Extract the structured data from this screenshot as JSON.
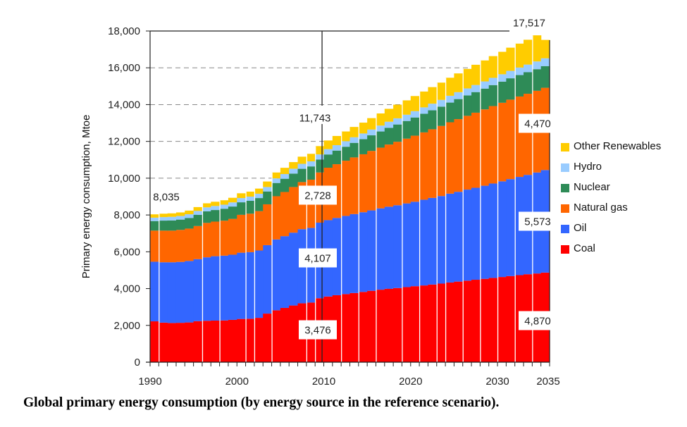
{
  "chart_data": {
    "type": "bar",
    "stacked": true,
    "title": "",
    "caption": "Global primary energy consumption (by energy source in the reference scenario).",
    "xlabel": "",
    "ylabel": "Primary energy consumption, Mtoe",
    "ylim": [
      0,
      18000
    ],
    "yticks": [
      0,
      2000,
      4000,
      6000,
      8000,
      10000,
      12000,
      14000,
      16000,
      18000
    ],
    "ytick_labels": [
      "0",
      "2,000",
      "4,000",
      "6,000",
      "8,000",
      "10,000",
      "12,000",
      "14,000",
      "16,000",
      "18,000"
    ],
    "xtick_labels": [
      {
        "year": 1990,
        "label": "1990"
      },
      {
        "year": 2000,
        "label": "2000"
      },
      {
        "year": 2010,
        "label": "2010"
      },
      {
        "year": 2020,
        "label": "2020"
      },
      {
        "year": 2030,
        "label": "2030"
      },
      {
        "year": 2035,
        "label": "2035"
      }
    ],
    "grid": "horizontal-dashed",
    "legend_position": "right",
    "categories": [
      1990,
      1991,
      1992,
      1993,
      1994,
      1995,
      1996,
      1997,
      1998,
      1999,
      2000,
      2001,
      2002,
      2003,
      2004,
      2005,
      2006,
      2007,
      2008,
      2009,
      2010,
      2011,
      2012,
      2013,
      2014,
      2015,
      2016,
      2017,
      2018,
      2019,
      2020,
      2021,
      2022,
      2023,
      2024,
      2025,
      2026,
      2027,
      2028,
      2029,
      2030,
      2031,
      2032,
      2033,
      2034,
      2035
    ],
    "series": [
      {
        "name": "Coal",
        "color": "#ff0000",
        "values": [
          2220,
          2150,
          2130,
          2140,
          2160,
          2230,
          2250,
          2260,
          2270,
          2300,
          2350,
          2360,
          2410,
          2640,
          2820,
          2950,
          3080,
          3200,
          3240,
          3476,
          3570,
          3640,
          3700,
          3760,
          3820,
          3880,
          3940,
          3990,
          4030,
          4080,
          4130,
          4170,
          4220,
          4270,
          4330,
          4380,
          4430,
          4480,
          4530,
          4580,
          4630,
          4680,
          4730,
          4780,
          4820,
          4870
        ]
      },
      {
        "name": "Oil",
        "color": "#3366ff",
        "values": [
          3240,
          3280,
          3300,
          3310,
          3340,
          3370,
          3450,
          3500,
          3520,
          3540,
          3600,
          3620,
          3660,
          3720,
          3850,
          3900,
          3960,
          4030,
          4060,
          4107,
          4150,
          4200,
          4250,
          4290,
          4330,
          4370,
          4420,
          4460,
          4500,
          4550,
          4590,
          4660,
          4710,
          4760,
          4830,
          4880,
          4950,
          5000,
          5060,
          5130,
          5200,
          5270,
          5340,
          5400,
          5490,
          5573
        ]
      },
      {
        "name": "Natural gas",
        "color": "#ff6600",
        "values": [
          1690,
          1720,
          1720,
          1740,
          1760,
          1800,
          1870,
          1880,
          1900,
          1950,
          2060,
          2090,
          2140,
          2220,
          2350,
          2400,
          2480,
          2560,
          2620,
          2728,
          2850,
          2920,
          3000,
          3080,
          3150,
          3230,
          3300,
          3380,
          3450,
          3520,
          3590,
          3660,
          3730,
          3810,
          3880,
          3950,
          4010,
          4080,
          4150,
          4210,
          4270,
          4320,
          4370,
          4410,
          4440,
          4470
        ]
      },
      {
        "name": "Nuclear",
        "color": "#2e8b57",
        "values": [
          520,
          545,
          555,
          560,
          580,
          610,
          630,
          630,
          650,
          670,
          680,
          700,
          710,
          700,
          720,
          720,
          730,
          720,
          720,
          700,
          720,
          740,
          760,
          790,
          820,
          850,
          880,
          910,
          940,
          960,
          990,
          1010,
          1030,
          1050,
          1070,
          1090,
          1110,
          1120,
          1130,
          1140,
          1150,
          1160,
          1165,
          1170,
          1175,
          1180
        ]
      },
      {
        "name": "Hydro",
        "color": "#99ccff",
        "values": [
          185,
          190,
          195,
          195,
          200,
          210,
          215,
          220,
          220,
          225,
          230,
          230,
          235,
          240,
          250,
          255,
          265,
          270,
          275,
          280,
          290,
          295,
          300,
          305,
          310,
          315,
          320,
          330,
          335,
          340,
          345,
          350,
          360,
          365,
          370,
          375,
          380,
          385,
          390,
          395,
          400,
          405,
          410,
          415,
          420,
          425
        ]
      },
      {
        "name": "Other Renewables",
        "color": "#ffcc00",
        "values": [
          180,
          185,
          190,
          195,
          200,
          210,
          220,
          230,
          240,
          250,
          260,
          270,
          280,
          300,
          320,
          340,
          360,
          390,
          410,
          452,
          470,
          500,
          530,
          560,
          590,
          620,
          660,
          700,
          740,
          780,
          820,
          860,
          900,
          940,
          980,
          1020,
          1060,
          1100,
          1140,
          1180,
          1220,
          1260,
          1300,
          1350,
          1420,
          999
        ]
      }
    ],
    "annotations": [
      {
        "label": "8,035",
        "year": 1990,
        "value": 8035,
        "kind": "total"
      },
      {
        "label": "11,743",
        "year": 2009,
        "value": 11743,
        "kind": "total"
      },
      {
        "label": "17,517",
        "year": 2035,
        "value": 17517,
        "kind": "total"
      },
      {
        "label": "3,476",
        "year": 2009,
        "series": "Coal",
        "value": 3476
      },
      {
        "label": "4,107",
        "year": 2009,
        "series": "Oil",
        "value": 4107
      },
      {
        "label": "2,728",
        "year": 2009,
        "series": "Natural gas",
        "value": 2728
      },
      {
        "label": "4,870",
        "year": 2035,
        "series": "Coal",
        "value": 4870
      },
      {
        "label": "5,573",
        "year": 2035,
        "series": "Oil",
        "value": 5573
      },
      {
        "label": "4,470",
        "year": 2035,
        "series": "Natural gas",
        "value": 4470
      }
    ],
    "reference_year_marker": 2009,
    "legend": [
      "Other Renewables",
      "Hydro",
      "Nuclear",
      "Natural gas",
      "Oil",
      "Coal"
    ]
  }
}
